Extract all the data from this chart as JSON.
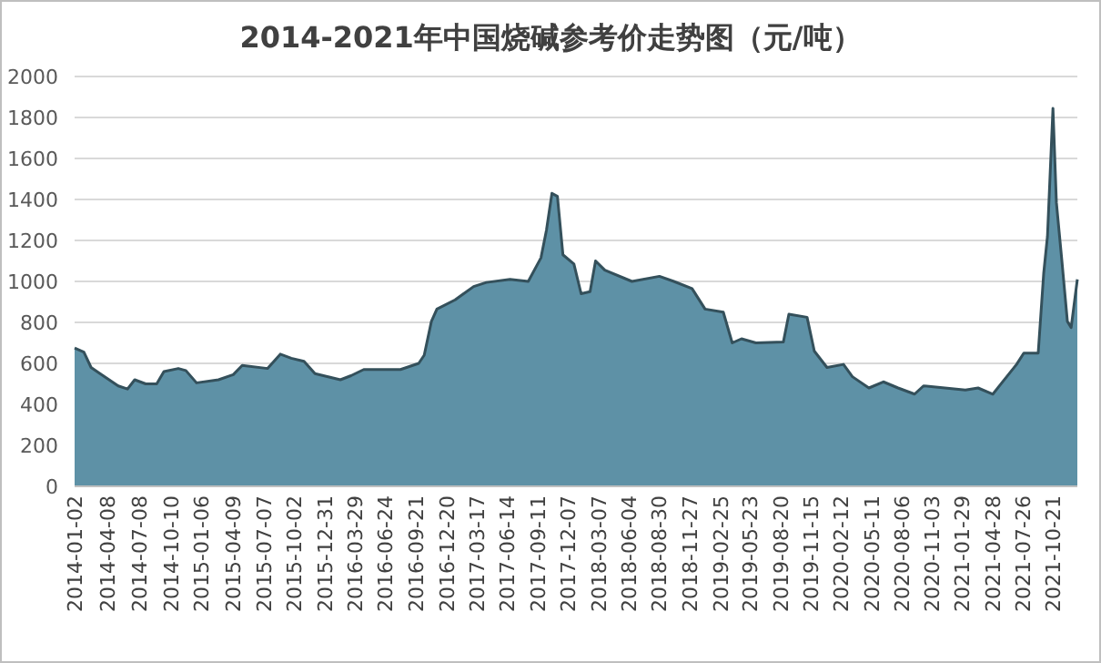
{
  "chart_data": {
    "type": "area",
    "title": "2014-2021年中国烧碱参考价走势图（元/吨）",
    "x": [
      "2014-01-02",
      "2014-01-29",
      "2014-02-19",
      "2014-03-17",
      "2014-05-09",
      "2014-06-05",
      "2014-06-26",
      "2014-07-28",
      "2014-08-29",
      "2014-09-19",
      "2014-10-31",
      "2014-11-22",
      "2014-12-23",
      "2015-02-25",
      "2015-04-09",
      "2015-05-05",
      "2015-07-18",
      "2015-08-24",
      "2015-09-25",
      "2015-11-01",
      "2015-12-03",
      "2016-02-15",
      "2016-03-17",
      "2016-04-23",
      "2016-08-08",
      "2016-09-30",
      "2016-10-16",
      "2016-11-06",
      "2016-11-22",
      "2017-01-14",
      "2017-03-09",
      "2017-04-15",
      "2017-06-23",
      "2017-08-15",
      "2017-09-21",
      "2017-10-07",
      "2017-10-23",
      "2017-11-08",
      "2017-11-24",
      "2017-12-26",
      "2018-01-16",
      "2018-02-11",
      "2018-02-27",
      "2018-03-26",
      "2018-06-13",
      "2018-09-01",
      "2018-10-13",
      "2018-12-05",
      "2019-01-12",
      "2019-03-06",
      "2019-04-01",
      "2019-04-28",
      "2019-06-09",
      "2019-08-28",
      "2019-09-13",
      "2019-11-05",
      "2019-11-26",
      "2020-01-02",
      "2020-02-19",
      "2020-03-16",
      "2020-05-03",
      "2020-06-14",
      "2020-07-27",
      "2020-09-13",
      "2020-10-09",
      "2021-02-08",
      "2021-03-17",
      "2021-04-29",
      "2021-05-25",
      "2021-07-07",
      "2021-07-28",
      "2021-09-08",
      "2021-09-24",
      "2021-10-05",
      "2021-10-21",
      "2021-10-31",
      "2021-11-16",
      "2021-12-02",
      "2021-12-13",
      "2021-12-31"
    ],
    "values": [
      675,
      655,
      580,
      550,
      490,
      475,
      520,
      500,
      500,
      560,
      575,
      565,
      505,
      520,
      545,
      590,
      575,
      645,
      625,
      610,
      550,
      520,
      540,
      570,
      570,
      600,
      640,
      805,
      865,
      910,
      975,
      995,
      1010,
      1000,
      1115,
      1250,
      1430,
      1415,
      1130,
      1085,
      940,
      950,
      1100,
      1055,
      1000,
      1025,
      1000,
      965,
      865,
      850,
      700,
      720,
      700,
      705,
      840,
      825,
      660,
      580,
      595,
      535,
      480,
      510,
      480,
      450,
      490,
      470,
      480,
      450,
      505,
      595,
      650,
      650,
      1040,
      1220,
      1845,
      1385,
      1100,
      805,
      775,
      1010
    ],
    "color": "#5e91a6",
    "xlim": [
      "2014-01-02",
      "2021-12-31"
    ],
    "xticks": [
      "2014-01-02",
      "2014-04-08",
      "2014-07-08",
      "2014-10-10",
      "2015-01-06",
      "2015-04-09",
      "2015-07-07",
      "2015-10-02",
      "2015-12-31",
      "2016-03-29",
      "2016-06-24",
      "2016-09-21",
      "2016-12-20",
      "2017-03-17",
      "2017-06-14",
      "2017-09-11",
      "2017-12-07",
      "2018-03-07",
      "2018-06-04",
      "2018-08-30",
      "2018-11-27",
      "2019-02-25",
      "2019-05-23",
      "2019-08-20",
      "2019-11-15",
      "2020-02-12",
      "2020-05-11",
      "2020-08-06",
      "2020-11-03",
      "2021-01-29",
      "2021-04-28",
      "2021-07-26",
      "2021-10-21"
    ],
    "ylim": [
      0,
      2000
    ],
    "yticks": [
      0,
      200,
      400,
      600,
      800,
      1000,
      1200,
      1400,
      1600,
      1800,
      2000
    ],
    "grid": "y"
  }
}
